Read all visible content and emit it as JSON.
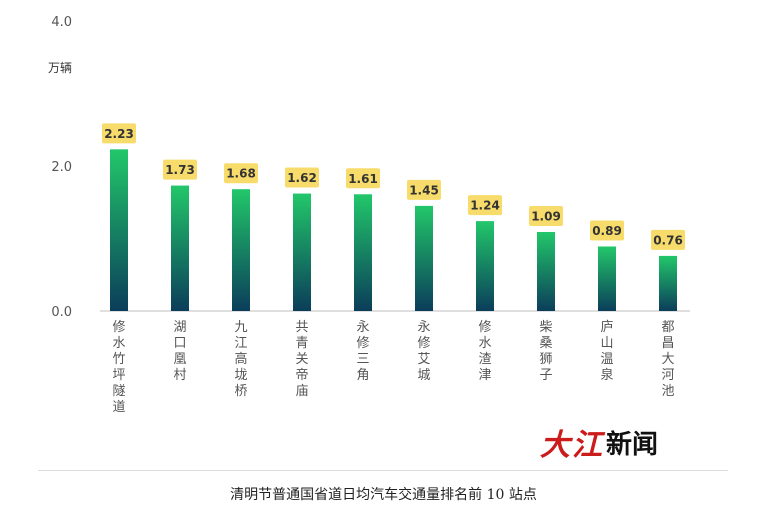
{
  "chart_data": {
    "type": "bar",
    "title": "",
    "xlabel": "",
    "ylabel": "万辆",
    "ylim": [
      0,
      4.0
    ],
    "yticks": [
      "0.0",
      "2.0",
      "4.0"
    ],
    "grid": false,
    "categories": [
      "修水竹坪隧道",
      "湖口凰村",
      "九江高垅桥",
      "共青关帝庙",
      "永修三角",
      "永修艾城",
      "修水渣津",
      "柴桑狮子",
      "庐山温泉",
      "都昌大河池"
    ],
    "values": [
      2.23,
      1.73,
      1.68,
      1.62,
      1.61,
      1.45,
      1.24,
      1.09,
      0.89,
      0.76
    ],
    "value_labels": [
      "2.23",
      "1.73",
      "1.68",
      "1.62",
      "1.61",
      "1.45",
      "1.24",
      "1.09",
      "0.89",
      "0.76"
    ],
    "colors": {
      "bar_top": "#22c76a",
      "bar_bottom": "#0b3d5a",
      "label_bg": "#f8dc6b",
      "axis": "#bfbfbf"
    }
  },
  "caption": "清明节普通国省道日均汽车交通量排名前 10 站点",
  "logo": {
    "red_text": "大江",
    "black_text": "新闻"
  }
}
